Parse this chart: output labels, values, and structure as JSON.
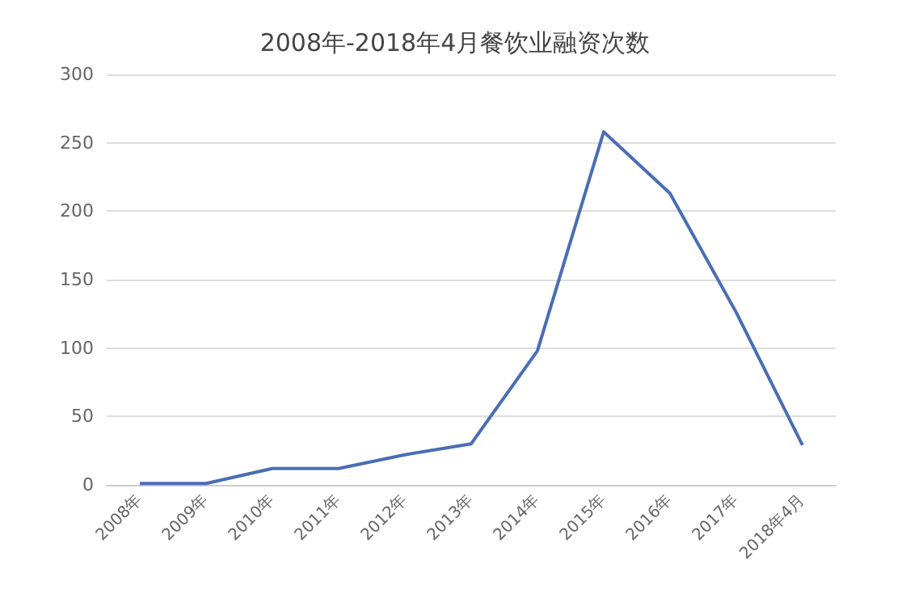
{
  "chart_data": {
    "type": "line",
    "title": "2008年-2018年4月餐饮业融资次数",
    "categories": [
      "2008年",
      "2009年",
      "2010年",
      "2011年",
      "2012年",
      "2013年",
      "2014年",
      "2015年",
      "2016年",
      "2017年",
      "2018年4月"
    ],
    "series": [
      {
        "color": "#4a6db5",
        "values": [
          1,
          1,
          12,
          12,
          22,
          30,
          98,
          258,
          213,
          126,
          29
        ]
      }
    ],
    "ylim": [
      0,
      300
    ],
    "yticks": [
      0,
      50,
      100,
      150,
      200,
      250,
      300
    ],
    "grid": "y",
    "marker": "none",
    "line_style": "solid"
  }
}
